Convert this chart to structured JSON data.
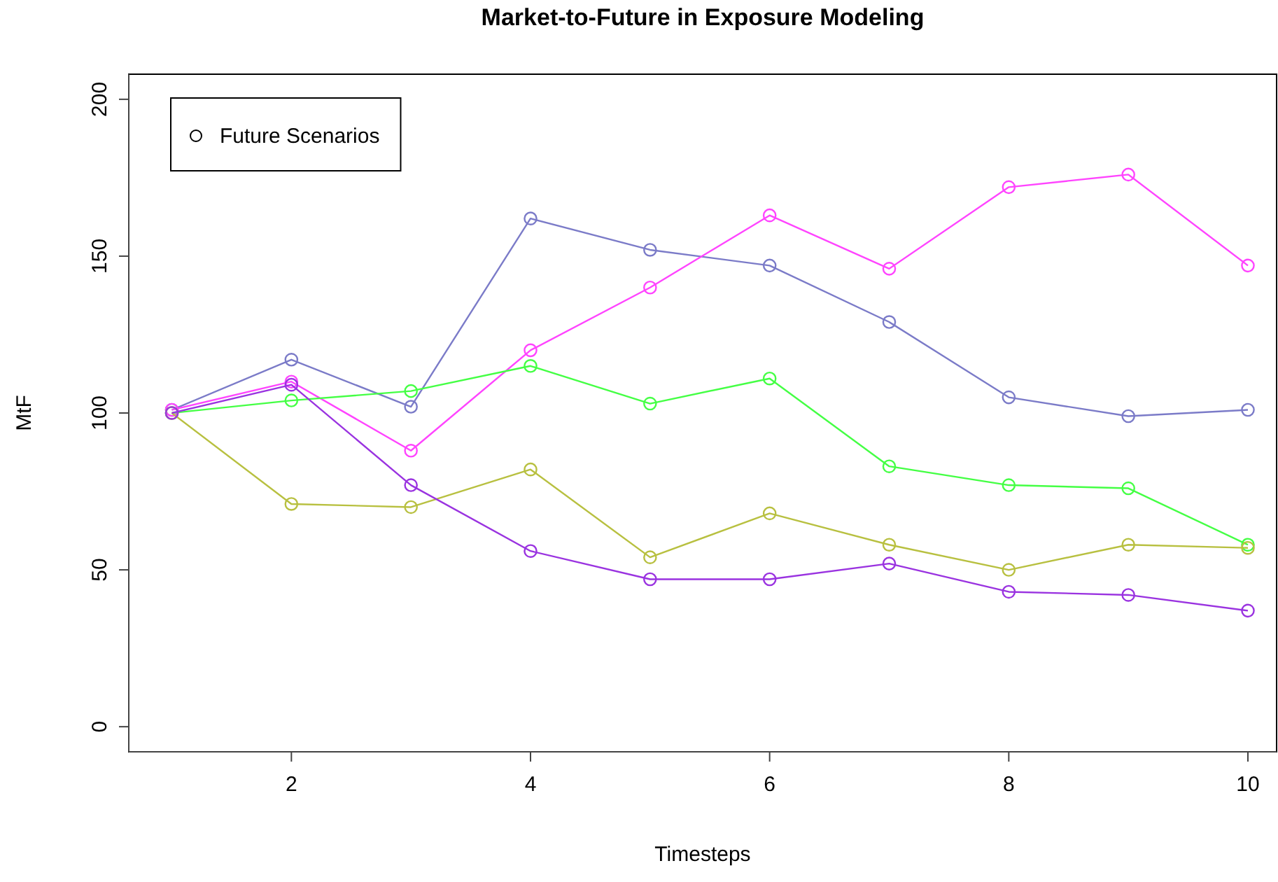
{
  "chart_data": {
    "type": "line",
    "title": "Market-to-Future in Exposure Modeling",
    "xlabel": "Timesteps",
    "ylabel": "MtF",
    "legend_title": "Future Scenarios",
    "marker": "circle",
    "line_style": "solid",
    "grid": false,
    "x": [
      1,
      2,
      3,
      4,
      5,
      6,
      7,
      8,
      9,
      10
    ],
    "xlim": [
      0.64,
      10.24
    ],
    "xticks": [
      2,
      4,
      6,
      8,
      10
    ],
    "ylim": [
      -8,
      208
    ],
    "yticks": [
      0,
      50,
      100,
      150,
      200
    ],
    "series": [
      {
        "color": "#7b7bc8",
        "values": [
          101,
          117,
          102,
          162,
          152,
          147,
          129,
          105,
          99,
          101
        ]
      },
      {
        "color": "#ff44ff",
        "values": [
          101,
          110,
          88,
          120,
          140,
          163,
          146,
          172,
          176,
          147
        ]
      },
      {
        "color": "#44ff44",
        "values": [
          100,
          104,
          107,
          115,
          103,
          111,
          83,
          77,
          76,
          58
        ]
      },
      {
        "color": "#b8c040",
        "values": [
          100,
          71,
          70,
          82,
          54,
          68,
          58,
          50,
          58,
          57
        ]
      },
      {
        "color": "#9a33e0",
        "values": [
          100,
          109,
          77,
          56,
          47,
          47,
          52,
          43,
          42,
          37
        ]
      }
    ]
  }
}
